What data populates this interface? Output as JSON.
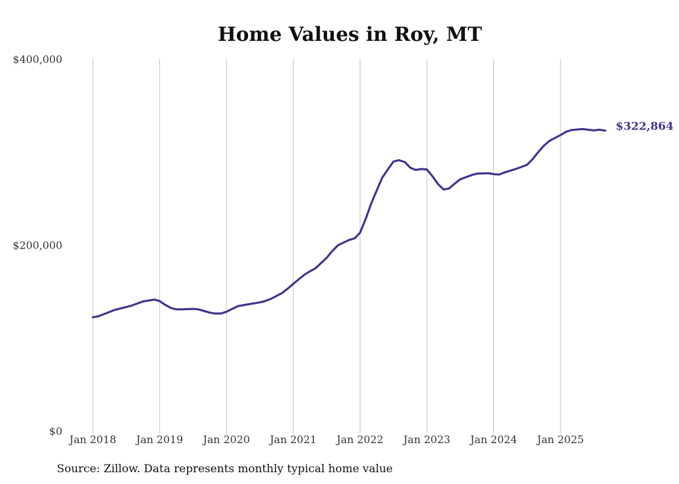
{
  "chart_data": {
    "type": "line",
    "title": "Home Values in Roy, MT",
    "xlabel": "",
    "ylabel": "",
    "ylim": [
      0,
      400000
    ],
    "y_ticks": [
      0,
      200000,
      400000
    ],
    "y_tick_labels": [
      "$0",
      "$200,000",
      "$400,000"
    ],
    "x_ticks": [
      2018,
      2019,
      2020,
      2021,
      2022,
      2023,
      2024,
      2025
    ],
    "x_tick_labels": [
      "Jan 2018",
      "Jan 2019",
      "Jan 2020",
      "Jan 2021",
      "Jan 2022",
      "Jan 2023",
      "Jan 2024",
      "Jan 2025"
    ],
    "grid": "vertical",
    "color": "#3d3490",
    "series": [
      {
        "name": "Typical home value",
        "end_label": "$322,864",
        "x": [
          2018.0,
          2018.08,
          2018.17,
          2018.33,
          2018.5,
          2018.58,
          2018.75,
          2018.92,
          2019.0,
          2019.08,
          2019.17,
          2019.25,
          2019.33,
          2019.5,
          2019.58,
          2019.75,
          2019.83,
          2019.92,
          2020.0,
          2020.17,
          2020.33,
          2020.5,
          2020.58,
          2020.67,
          2020.83,
          2020.92,
          2021.0,
          2021.17,
          2021.25,
          2021.33,
          2021.5,
          2021.58,
          2021.67,
          2021.83,
          2021.92,
          2022.0,
          2022.08,
          2022.17,
          2022.33,
          2022.42,
          2022.5,
          2022.58,
          2022.67,
          2022.75,
          2022.83,
          2022.92,
          2023.0,
          2023.08,
          2023.17,
          2023.25,
          2023.33,
          2023.42,
          2023.5,
          2023.67,
          2023.75,
          2023.92,
          2024.0,
          2024.08,
          2024.17,
          2024.33,
          2024.5,
          2024.58,
          2024.67,
          2024.75,
          2024.83,
          2024.92,
          2025.0,
          2025.08,
          2025.17,
          2025.33,
          2025.5,
          2025.58,
          2025.67
        ],
        "values": [
          122000,
          123000,
          125500,
          130000,
          133000,
          134500,
          139000,
          141000,
          139500,
          135500,
          132000,
          130500,
          130500,
          131000,
          130500,
          127000,
          126000,
          126000,
          128000,
          134000,
          136000,
          138000,
          139500,
          142000,
          148000,
          153000,
          158000,
          168000,
          171500,
          174500,
          186000,
          193000,
          199500,
          205000,
          207000,
          213000,
          227000,
          245000,
          272000,
          281500,
          289500,
          291000,
          289000,
          283000,
          280500,
          281500,
          281000,
          274000,
          265000,
          259500,
          260500,
          266000,
          270500,
          275000,
          276500,
          277000,
          276000,
          275500,
          278000,
          281500,
          286000,
          292000,
          300000,
          306500,
          311500,
          315000,
          318000,
          321500,
          323500,
          324500,
          323000,
          323800,
          322864
        ]
      }
    ]
  },
  "source": "Source: Zillow. Data represents monthly typical home value"
}
